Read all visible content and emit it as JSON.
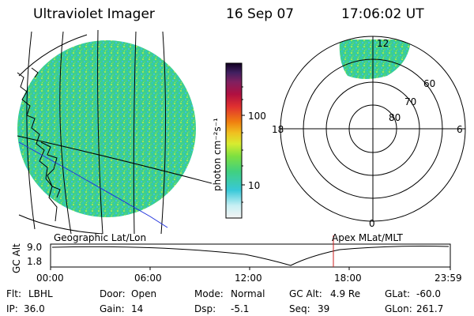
{
  "header": {
    "instrument": "Ultraviolet Imager",
    "date": "16 Sep 07",
    "time": "17:06:02 UT"
  },
  "colorbar": {
    "label": "photon cm⁻²s⁻¹",
    "ticks": [
      "100",
      "10"
    ]
  },
  "polar": {
    "mlt_labels": {
      "top": "12",
      "left": "18",
      "right": "6",
      "bottom": "0"
    },
    "lat_labels": [
      "60",
      "70",
      "80"
    ]
  },
  "timeline": {
    "left_title": "Geographic Lat/Lon",
    "right_title": "Apex MLat/MLT",
    "yaxis_label": "GC Alt",
    "y_top": "9.0",
    "y_bottom": "1.8",
    "x_ticks": [
      "00:00",
      "06:00",
      "12:00",
      "18:00",
      "23:59"
    ]
  },
  "footer": {
    "row1": [
      {
        "key": "Flt:",
        "val": "LBHL"
      },
      {
        "key": "Door:",
        "val": "Open"
      },
      {
        "key": "Mode:",
        "val": "Normal"
      },
      {
        "key": "GC Alt:",
        "val": "4.9 Re"
      },
      {
        "key": "GLat:",
        "val": "-60.0"
      }
    ],
    "row2": [
      {
        "key": "IP:",
        "val": "36.0"
      },
      {
        "key": "Gain:",
        "val": "14"
      },
      {
        "key": "Dsp:",
        "val": "-5.1"
      },
      {
        "key": "Seq:",
        "val": "39"
      },
      {
        "key": "GLon:",
        "val": "261.7"
      }
    ]
  },
  "colors": {
    "disk_primary": "#33c0b0",
    "disk_secondary": "#3fd070",
    "disk_accent": "#b7e94a",
    "grid": "#000000",
    "track_line": "#2233dd",
    "time_marker": "#cc2222"
  }
}
